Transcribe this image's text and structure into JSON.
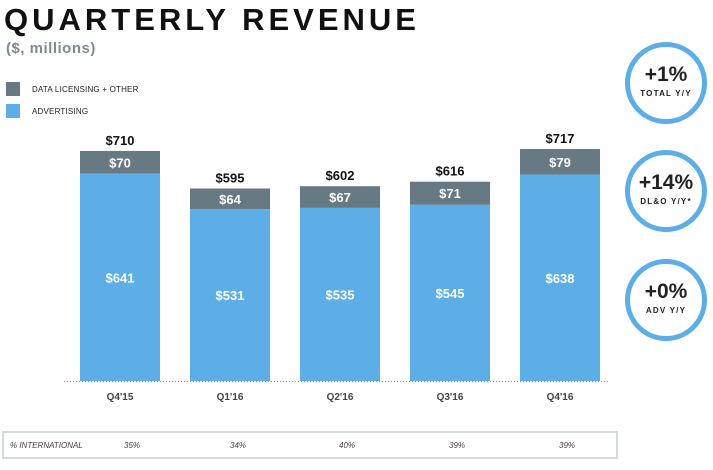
{
  "title": "QUARTERLY REVENUE",
  "subtitle": "($, millions)",
  "legend": [
    {
      "label": "DATA LICENSING + OTHER",
      "color": "#677983"
    },
    {
      "label": "ADVERTISING",
      "color": "#5daee6"
    }
  ],
  "chart_data": {
    "type": "bar",
    "stacked": true,
    "title": "QUARTERLY REVENUE",
    "subtitle": "($, millions)",
    "categories": [
      "Q4'15",
      "Q1'16",
      "Q2'16",
      "Q3'16",
      "Q4'16"
    ],
    "series": [
      {
        "name": "ADVERTISING",
        "color": "#5daee6",
        "values": [
          641,
          531,
          535,
          545,
          638
        ],
        "labels": [
          "$641",
          "$531",
          "$535",
          "$545",
          "$638"
        ]
      },
      {
        "name": "DATA LICENSING + OTHER",
        "color": "#677983",
        "values": [
          70,
          64,
          67,
          71,
          79
        ],
        "labels": [
          "$70",
          "$64",
          "$67",
          "$71",
          "$79"
        ]
      }
    ],
    "totals": [
      710,
      595,
      602,
      616,
      717
    ],
    "total_labels": [
      "$710",
      "$595",
      "$602",
      "$616",
      "$717"
    ],
    "ylim": [
      0,
      717
    ],
    "legend_position": "top-left",
    "grid": false
  },
  "callouts": [
    {
      "value": "+1%",
      "label": "TOTAL Y/Y"
    },
    {
      "value": "+14%",
      "label": "DL&O Y/Y*"
    },
    {
      "value": "+0%",
      "label": "ADV Y/Y"
    }
  ],
  "international": {
    "label": "% INTERNATIONAL",
    "values": [
      "35%",
      "34%",
      "40%",
      "39%",
      "39%"
    ]
  }
}
